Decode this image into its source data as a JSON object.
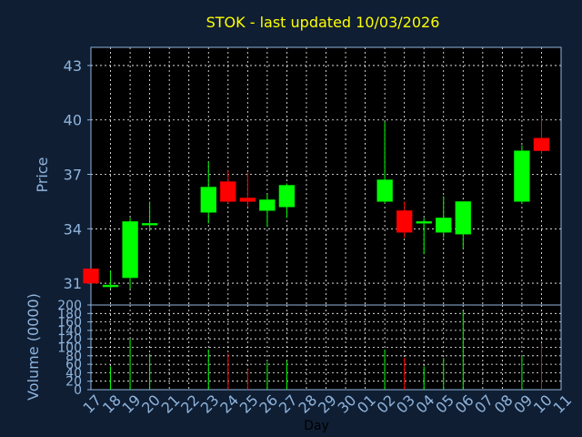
{
  "chart_data": {
    "title": "STOK - last updated 10/03/2026",
    "type": "candlestick",
    "xlabel": "Day",
    "x_ticks": [
      "17",
      "18",
      "19",
      "20",
      "21",
      "22",
      "23",
      "24",
      "25",
      "26",
      "27",
      "28",
      "29",
      "30",
      "01",
      "02",
      "03",
      "04",
      "05",
      "06",
      "07",
      "08",
      "09",
      "10",
      "11"
    ],
    "price_panel": {
      "ylabel": "Price",
      "yticks": [
        31,
        34,
        37,
        40,
        43
      ],
      "ylim": [
        29.8,
        44.0
      ],
      "grid": true
    },
    "volume_panel": {
      "ylabel": "Volume (0000)",
      "yticks": [
        0,
        20,
        40,
        60,
        80,
        100,
        120,
        140,
        160,
        180,
        200
      ],
      "ylim": [
        0,
        200
      ],
      "grid": true
    },
    "candles": [
      {
        "day": "17",
        "open": 31.8,
        "high": 31.8,
        "low": 31.0,
        "close": 31.0,
        "volume": 0
      },
      {
        "day": "18",
        "open": 30.8,
        "high": 31.7,
        "low": 30.7,
        "close": 30.9,
        "volume": 55
      },
      {
        "day": "19",
        "open": 31.3,
        "high": 34.6,
        "low": 30.7,
        "close": 34.4,
        "volume": 120
      },
      {
        "day": "20",
        "open": 34.2,
        "high": 35.5,
        "low": 33.9,
        "close": 34.3,
        "volume": 85
      },
      {
        "day": "23",
        "open": 34.9,
        "high": 37.7,
        "low": 34.3,
        "close": 36.3,
        "volume": 95
      },
      {
        "day": "24",
        "open": 36.6,
        "high": 37.2,
        "low": 35.4,
        "close": 35.5,
        "volume": 85
      },
      {
        "day": "25",
        "open": 35.7,
        "high": 37.1,
        "low": 35.2,
        "close": 35.5,
        "volume": 48
      },
      {
        "day": "26",
        "open": 35.0,
        "high": 35.9,
        "low": 34.1,
        "close": 35.6,
        "volume": 65
      },
      {
        "day": "27",
        "open": 35.2,
        "high": 36.5,
        "low": 34.6,
        "close": 36.4,
        "volume": 68
      },
      {
        "day": "02",
        "open": 35.5,
        "high": 39.9,
        "low": 35.4,
        "close": 36.7,
        "volume": 95
      },
      {
        "day": "03",
        "open": 35.0,
        "high": 35.5,
        "low": 33.5,
        "close": 33.8,
        "volume": 75
      },
      {
        "day": "04",
        "open": 34.3,
        "high": 34.6,
        "low": 32.6,
        "close": 34.4,
        "volume": 55
      },
      {
        "day": "05",
        "open": 33.8,
        "high": 35.8,
        "low": 33.5,
        "close": 34.6,
        "volume": 75
      },
      {
        "day": "06",
        "open": 33.7,
        "high": 35.5,
        "low": 32.9,
        "close": 35.5,
        "volume": 185
      },
      {
        "day": "09",
        "open": 35.5,
        "high": 38.6,
        "low": 35.4,
        "close": 38.3,
        "volume": 80
      },
      {
        "day": "10",
        "open": 39.0,
        "high": 40.2,
        "low": 38.1,
        "close": 38.3,
        "volume": 110
      }
    ],
    "colors": {
      "background": "#0f1e33",
      "plot_background": "#000000",
      "up": "#00ff00",
      "down": "#ff0000",
      "grid": "#ffffff",
      "axis": "#8fb4dc",
      "title": "#ffff00"
    }
  }
}
